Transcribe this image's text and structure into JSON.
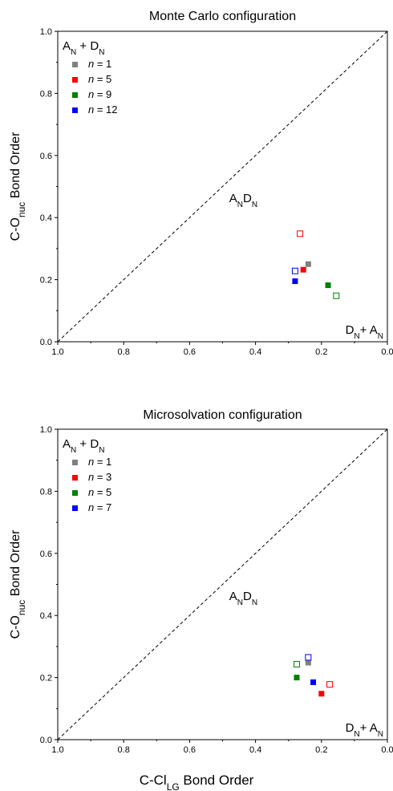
{
  "figure": {
    "xlabel": "C-Cl",
    "xlabel_sub": "LG",
    "xlabel_tail": " Bond Order"
  },
  "chart_data": [
    {
      "type": "scatter",
      "title": "Monte Carlo configuration",
      "ylabel": "C-O",
      "ylabel_sub": "nuc",
      "ylabel_tail": " Bond Order",
      "xlim": [
        1.0,
        0.0
      ],
      "ylim": [
        0.0,
        1.0
      ],
      "x_reversed": true,
      "xticks": [
        1.0,
        0.8,
        0.6,
        0.4,
        0.2,
        0.0
      ],
      "yticks": [
        0.0,
        0.2,
        0.4,
        0.6,
        0.8,
        1.0
      ],
      "xtick_labels": [
        "1.0",
        "0.8",
        "0.6",
        "0.4",
        "0.2",
        "0.0"
      ],
      "ytick_labels": [
        "0.0",
        "0.2",
        "0.4",
        "0.6",
        "0.8",
        "1.0"
      ],
      "grid": false,
      "diagonal": "dashed line from (1.0, 0.0) to (0.0, 1.0)",
      "legend_placement": "top-left",
      "legend_header": {
        "a": "A",
        "a_sub": "N",
        "mid": " + D",
        "b_sub": "N"
      },
      "region_labels": [
        {
          "a": "A",
          "a_sub": "N",
          "mid": "D",
          "b_sub": "N"
        },
        {
          "a": "D",
          "a_sub": "N",
          "mid": "+ A",
          "b_sub": "N"
        }
      ],
      "series": [
        {
          "name": "n = 1",
          "n_label": "n",
          "n_value": "= 1",
          "color": "#808080",
          "filled": [
            0.24,
            0.25
          ],
          "open": null
        },
        {
          "name": "n = 5",
          "n_label": "n",
          "n_value": "= 5",
          "color": "#ff0000",
          "filled": [
            0.255,
            0.232
          ],
          "open": [
            0.265,
            0.348
          ]
        },
        {
          "name": "n = 9",
          "n_label": "n",
          "n_value": "= 9",
          "color": "#008000",
          "filled": [
            0.18,
            0.182
          ],
          "open": [
            0.155,
            0.148
          ]
        },
        {
          "name": "n = 12",
          "n_label": "n",
          "n_value": "= 12",
          "color": "#0000ff",
          "filled": [
            0.28,
            0.195
          ],
          "open": [
            0.28,
            0.228
          ]
        }
      ]
    },
    {
      "type": "scatter",
      "title": "Microsolvation configuration",
      "ylabel": "C-O",
      "ylabel_sub": "nuc",
      "ylabel_tail": " Bond Order",
      "xlim": [
        1.0,
        0.0
      ],
      "ylim": [
        0.0,
        1.0
      ],
      "x_reversed": true,
      "xticks": [
        1.0,
        0.8,
        0.6,
        0.4,
        0.2,
        0.0
      ],
      "yticks": [
        0.0,
        0.2,
        0.4,
        0.6,
        0.8,
        1.0
      ],
      "xtick_labels": [
        "1.0",
        "0.8",
        "0.6",
        "0.4",
        "0.2",
        "0.0"
      ],
      "ytick_labels": [
        "0.0",
        "0.2",
        "0.4",
        "0.6",
        "0.8",
        "1.0"
      ],
      "grid": false,
      "diagonal": "dashed line from (1.0, 0.0) to (0.0, 1.0)",
      "legend_placement": "top-left",
      "legend_header": {
        "a": "A",
        "a_sub": "N",
        "mid": " + D",
        "b_sub": "N"
      },
      "region_labels": [
        {
          "a": "A",
          "a_sub": "N",
          "mid": "D",
          "b_sub": "N"
        },
        {
          "a": "D",
          "a_sub": "N",
          "mid": "+ A",
          "b_sub": "N"
        }
      ],
      "series": [
        {
          "name": "n = 1",
          "n_label": "n",
          "n_value": "= 1",
          "color": "#808080",
          "filled": [
            0.24,
            0.248
          ],
          "open": null
        },
        {
          "name": "n = 3",
          "n_label": "n",
          "n_value": "= 3",
          "color": "#ff0000",
          "filled": [
            0.2,
            0.148
          ],
          "open": [
            0.175,
            0.178
          ]
        },
        {
          "name": "n = 5",
          "n_label": "n",
          "n_value": "= 5",
          "color": "#008000",
          "filled": [
            0.275,
            0.2
          ],
          "open": [
            0.275,
            0.243
          ]
        },
        {
          "name": "n = 7",
          "n_label": "n",
          "n_value": "= 7",
          "color": "#0000ff",
          "filled": [
            0.225,
            0.185
          ],
          "open": [
            0.24,
            0.265
          ]
        }
      ]
    }
  ]
}
